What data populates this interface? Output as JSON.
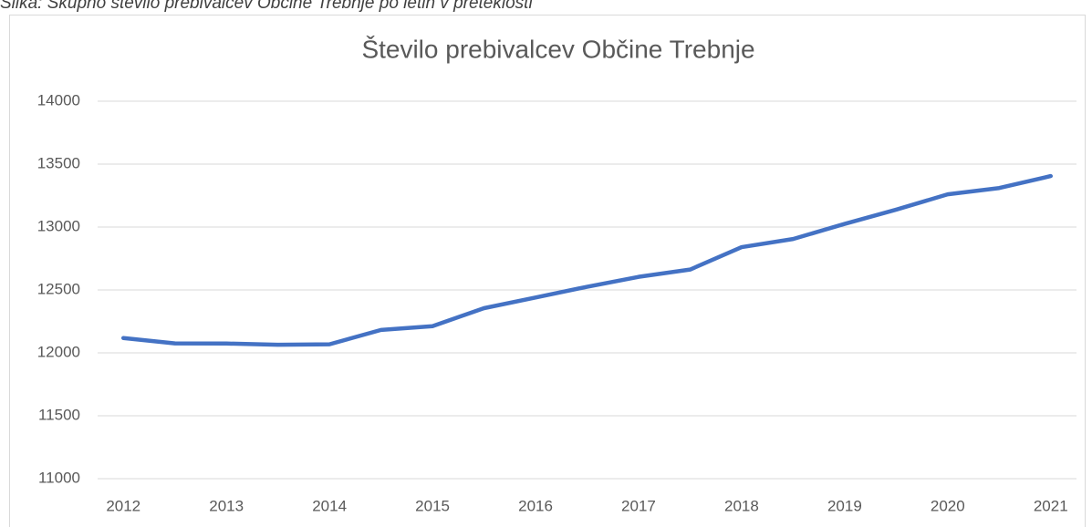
{
  "caption": "Slika: Skupno število prebivalcev Občine Trebnje po letih v preteklosti",
  "chart_data": {
    "type": "line",
    "title": "Število prebivalcev Občine Trebnje",
    "categories": [
      "2012",
      null,
      "2013",
      null,
      "2014",
      null,
      "2015",
      null,
      "2016",
      null,
      "2017",
      null,
      "2018",
      null,
      "2019",
      null,
      "2020",
      null,
      "2021"
    ],
    "series": [
      {
        "name": "Število prebivalcev",
        "color": "#4472c4",
        "values": [
          12118,
          12075,
          12074,
          12064,
          12068,
          12182,
          12212,
          12355,
          12440,
          12525,
          12604,
          12662,
          12840,
          12905,
          13025,
          13138,
          13260,
          13310,
          13405
        ]
      }
    ],
    "ylim": [
      11000,
      14000
    ],
    "yticks": [
      11000,
      11500,
      12000,
      12500,
      13000,
      13500,
      14000
    ],
    "grid": true
  }
}
